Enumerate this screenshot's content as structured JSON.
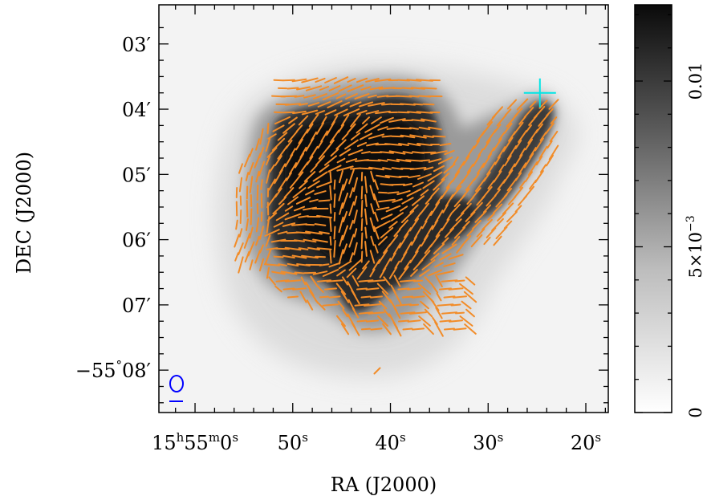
{
  "chart_data": {
    "type": "heatmap",
    "overlay": "polarization-vectors",
    "xlabel": "RA (J2000)",
    "ylabel": "DEC (J2000)",
    "x_ticks": [
      {
        "ra_sec": 60,
        "main": "15",
        "sup1": "h",
        "mid": "55",
        "sup2": "m",
        "sec": "0",
        "sup3": "s"
      },
      {
        "ra_sec": 50,
        "main": "50",
        "sup1": "s"
      },
      {
        "ra_sec": 40,
        "main": "40",
        "sup1": "s"
      },
      {
        "ra_sec": 30,
        "main": "30",
        "sup1": "s"
      },
      {
        "ra_sec": 20,
        "main": "20",
        "sup1": "s"
      }
    ],
    "xlim": [
      63.7,
      17.7
    ],
    "y_ticks": [
      {
        "dec_arcmin": -3,
        "text": "03′"
      },
      {
        "dec_arcmin": -4,
        "text": "04′"
      },
      {
        "dec_arcmin": -5,
        "text": "05′"
      },
      {
        "dec_arcmin": -6,
        "text": "06′"
      },
      {
        "dec_arcmin": -7,
        "text": "07′"
      },
      {
        "dec_arcmin": -8,
        "deg": "−55",
        "degsup": "°",
        "text": "08′"
      }
    ],
    "ylim": [
      -8.65,
      -2.4
    ],
    "colorbar": {
      "range": [
        0,
        0.0123
      ],
      "ticks": [
        {
          "value": 0,
          "text": "0"
        },
        {
          "value": 0.005,
          "text": "5×10",
          "sup": "−3"
        },
        {
          "value": 0.01,
          "text": "0.01"
        }
      ],
      "colormap": "white-to-black"
    },
    "emission_colors": [
      "#f3f3f3",
      "#0a0a0a"
    ],
    "vector_color": "#f28c28",
    "beam_color": "#0000ff",
    "marker_color": "#00e5e5",
    "marker": {
      "ra_sec": 24.7,
      "dec_arcmin": -3.75
    }
  }
}
